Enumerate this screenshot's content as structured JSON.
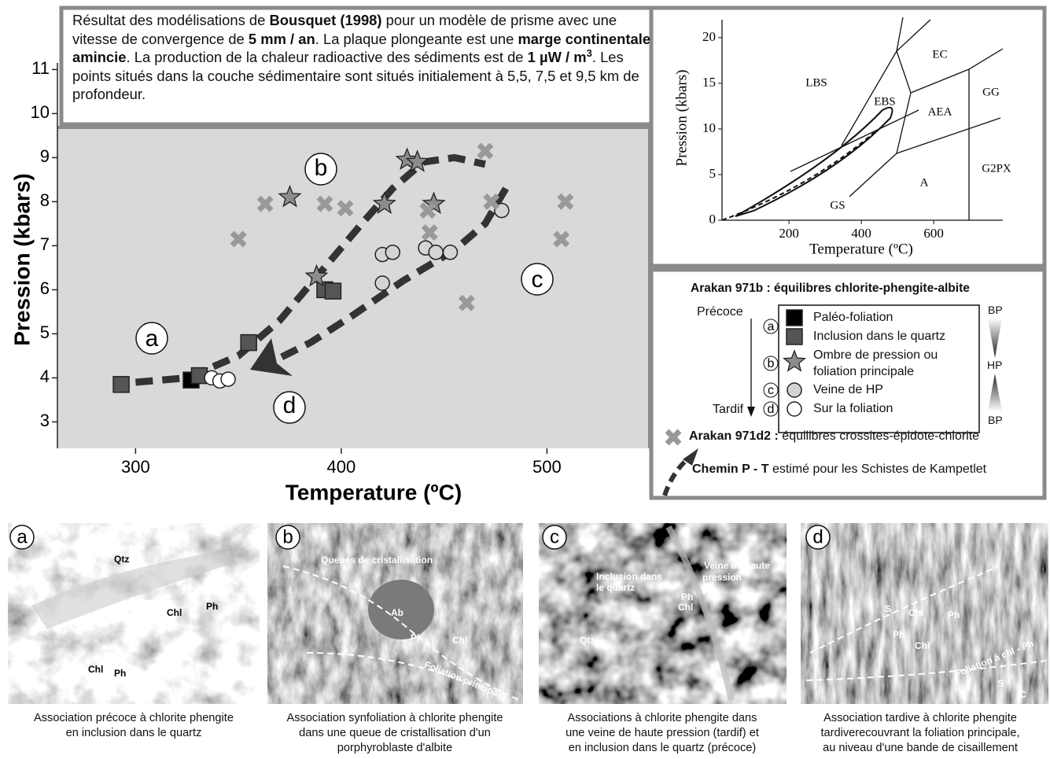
{
  "text_box": {
    "segments": [
      {
        "text": "Résultat des modélisations de "
      },
      {
        "text": "Bousquet (1998)",
        "bold": true
      },
      {
        "text": " pour un modèle de prisme avec une vitesse de convergence de "
      },
      {
        "text": "5 mm / an",
        "bold": true
      },
      {
        "text": ". La plaque plongeante est une "
      },
      {
        "text": "marge continentale amincie",
        "bold": true
      },
      {
        "text": ". La production de la chaleur radioactive des sédiments est de "
      },
      {
        "text": "1 µW / m",
        "bold": true
      },
      {
        "text": "3",
        "bold": true,
        "superscript": true
      },
      {
        "text": ". Les points situés dans la couche sédimentaire sont situés initialement à 5,5, 7,5 et 9,5 km de profondeur."
      }
    ]
  },
  "chart_data": [
    {
      "type": "scatter",
      "xlabel": "Temperature (ºC)",
      "ylabel": "Pression (kbars)",
      "xlim": [
        262,
        540
      ],
      "ylim": [
        2.4,
        12.4
      ],
      "xticks": [
        300,
        400,
        500
      ],
      "yticks": [
        3,
        4,
        5,
        6,
        7,
        8,
        9,
        10,
        11
      ],
      "annotations": [
        "a",
        "b",
        "c",
        "d"
      ],
      "series": [
        {
          "name": "Paléo-foliation",
          "marker": "square",
          "color": "#000000",
          "x": [
            327
          ],
          "values": [
            3.95
          ]
        },
        {
          "name": "Inclusion dans le quartz",
          "marker": "square",
          "color": "#555555",
          "x": [
            293,
            331,
            355,
            392,
            396
          ],
          "values": [
            3.85,
            4.05,
            4.8,
            6.0,
            5.97
          ]
        },
        {
          "name": "Ombre de pression ou foliation principale",
          "marker": "star",
          "color": "#8c8c8c",
          "x": [
            375,
            388,
            421,
            432,
            437,
            445
          ],
          "values": [
            8.1,
            6.3,
            7.95,
            8.95,
            8.9,
            7.95
          ]
        },
        {
          "name": "Veine de HP",
          "marker": "circle",
          "color": "#d4d4d4",
          "x": [
            420,
            425,
            420,
            441,
            446,
            453,
            478
          ],
          "values": [
            6.8,
            6.85,
            6.15,
            6.95,
            6.85,
            6.85,
            7.8
          ]
        },
        {
          "name": "Sur la foliation",
          "marker": "circle",
          "color": "#ffffff",
          "x": [
            337,
            341,
            345
          ],
          "values": [
            4.0,
            3.93,
            3.97
          ]
        },
        {
          "name": "Arakan 971d2 :",
          "marker": "cross",
          "color": "#999999",
          "x": [
            350,
            363,
            392,
            402,
            442,
            443,
            470,
            473,
            461,
            509,
            507
          ],
          "values": [
            7.15,
            7.95,
            7.95,
            7.85,
            7.8,
            7.3,
            9.15,
            8.0,
            5.7,
            8.0,
            7.15
          ]
        },
        {
          "name": "Chemin P - T",
          "type": "line",
          "dashed": true,
          "color": "#333333",
          "x": [
            300,
            325,
            350,
            370,
            390,
            410,
            425,
            440,
            455,
            470,
            null,
            480,
            470,
            455,
            430,
            405,
            385,
            370
          ],
          "values": [
            3.9,
            4.0,
            4.5,
            5.3,
            6.4,
            7.5,
            8.3,
            8.9,
            9.0,
            8.85,
            null,
            8.3,
            7.5,
            6.9,
            6.2,
            5.4,
            4.8,
            4.45
          ]
        }
      ]
    },
    {
      "type": "phase-diagram",
      "xlabel": "Temperature (ºC)",
      "ylabel": "Pression (kbars)",
      "xlim": [
        15,
        780
      ],
      "ylim": [
        0,
        22.4
      ],
      "xticks": [
        200,
        400,
        600
      ],
      "yticks": [
        0,
        5,
        10,
        15,
        20
      ],
      "facies": [
        "LBS",
        "EC",
        "EBS",
        "AEA",
        "GG",
        "GS",
        "A",
        "G2PX"
      ]
    }
  ],
  "legend": {
    "title": "Arakan 971b : équilibres chlorite-phengite-albite",
    "early": "Précoce",
    "late": "Tardif",
    "letters": [
      "a",
      "b",
      "c",
      "d"
    ],
    "pressure_top": "BP",
    "pressure_mid": "HP",
    "pressure_bottom": "BP",
    "crosses_text": "équilibres crossites-épidote-chlorite",
    "path_text": "estimé pour les Schistes de Kampetlet"
  },
  "photos": [
    {
      "letter": "a",
      "labels": [
        "Qtz",
        "Chl",
        "Ph",
        "Chl",
        "Ph"
      ],
      "caption": [
        "Association précoce à chlorite phengite",
        "en inclusion dans le quartz"
      ]
    },
    {
      "letter": "b",
      "labels": [
        "Queues de cristallisation",
        "Ab",
        "Chl",
        "Ph",
        "Foliation principale"
      ],
      "caption": [
        "Association synfoliation à chlorite phengite",
        "dans une queue de cristallisation  d'un",
        "porphyroblaste d'albite"
      ]
    },
    {
      "letter": "c",
      "labels": [
        "Inclusion dans",
        "le quartz",
        "Veine de haute",
        "pression",
        "Qtz",
        "Ph",
        "Chl"
      ],
      "caption": [
        "Associations à chlorite phengite dans",
        "une veine de haute pression (tardif) et",
        "en inclusion dans le quartz (précoce)"
      ]
    },
    {
      "letter": "d",
      "labels": [
        "S",
        "Chl",
        "Ph",
        "Ph",
        "Chl",
        "Foliation à chl - Ph",
        "S",
        "C"
      ],
      "caption": [
        "Association tardive à chlorite phengite",
        "tardiverecouvrant la foliation principale,",
        "au niveau d'une bande de cisaillement"
      ]
    }
  ]
}
